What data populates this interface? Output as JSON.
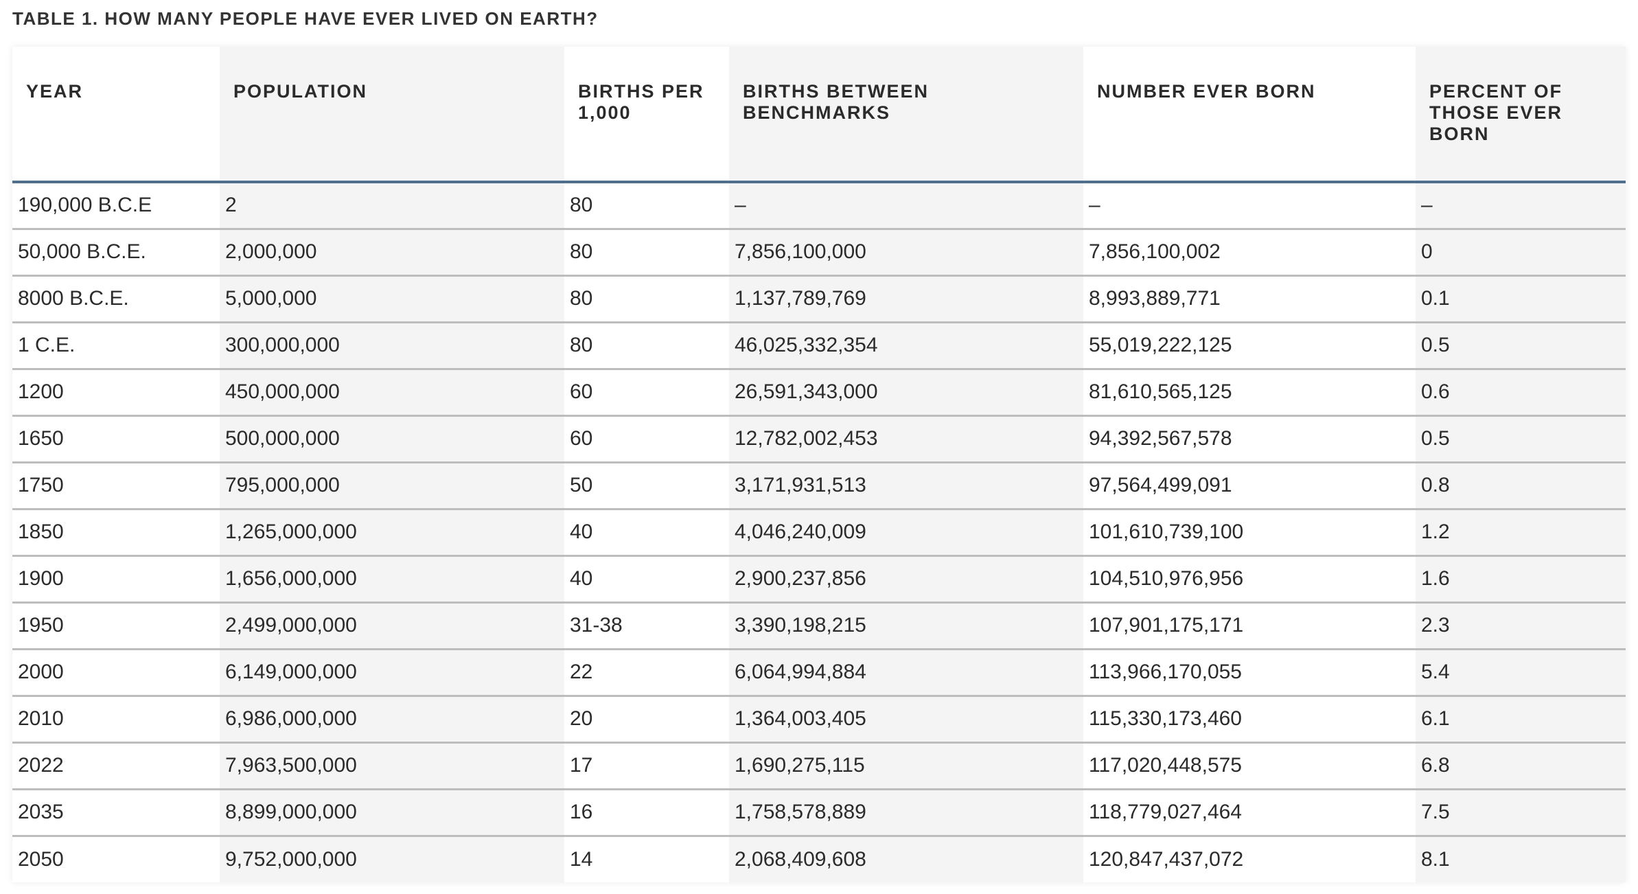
{
  "title": "TABLE 1. HOW MANY PEOPLE HAVE EVER LIVED ON EARTH?",
  "columns": [
    "YEAR",
    "POPULATION",
    "BIRTHS PER 1,000",
    "BIRTHS BETWEEN BENCHMARKS",
    "NUMBER EVER BORN",
    "PERCENT OF THOSE EVER BORN"
  ],
  "rows": [
    [
      "190,000 B.C.E",
      "2",
      "80",
      "–",
      "–",
      "–"
    ],
    [
      "50,000 B.C.E.",
      "2,000,000",
      "80",
      "7,856,100,000",
      "7,856,100,002",
      "0"
    ],
    [
      "8000 B.C.E.",
      "5,000,000",
      "80",
      "1,137,789,769",
      "8,993,889,771",
      "0.1"
    ],
    [
      "1 C.E.",
      "300,000,000",
      "80",
      "46,025,332,354",
      "55,019,222,125",
      "0.5"
    ],
    [
      "1200",
      "450,000,000",
      "60",
      "26,591,343,000",
      "81,610,565,125",
      "0.6"
    ],
    [
      "1650",
      "500,000,000",
      "60",
      "12,782,002,453",
      "94,392,567,578",
      "0.5"
    ],
    [
      "1750",
      "795,000,000",
      "50",
      "3,171,931,513",
      "97,564,499,091",
      "0.8"
    ],
    [
      "1850",
      "1,265,000,000",
      "40",
      "4,046,240,009",
      "101,610,739,100",
      "1.2"
    ],
    [
      "1900",
      "1,656,000,000",
      "40",
      "2,900,237,856",
      "104,510,976,956",
      "1.6"
    ],
    [
      "1950",
      "2,499,000,000",
      "31-38",
      "3,390,198,215",
      "107,901,175,171",
      "2.3"
    ],
    [
      "2000",
      "6,149,000,000",
      "22",
      "6,064,994,884",
      "113,966,170,055",
      "5.4"
    ],
    [
      "2010",
      "6,986,000,000",
      "20",
      "1,364,003,405",
      "115,330,173,460",
      "6.1"
    ],
    [
      "2022",
      "7,963,500,000",
      "17",
      "1,690,275,115",
      "117,020,448,575",
      "6.8"
    ],
    [
      "2035",
      "8,899,000,000",
      "16",
      "1,758,578,889",
      "118,779,027,464",
      "7.5"
    ],
    [
      "2050",
      "9,752,000,000",
      "14",
      "2,068,409,608",
      "120,847,437,072",
      "8.1"
    ]
  ],
  "colors": {
    "header_rule": "#4f6f8f",
    "shaded_column": "#f4f4f4",
    "row_rule": "#bdbdbd"
  }
}
